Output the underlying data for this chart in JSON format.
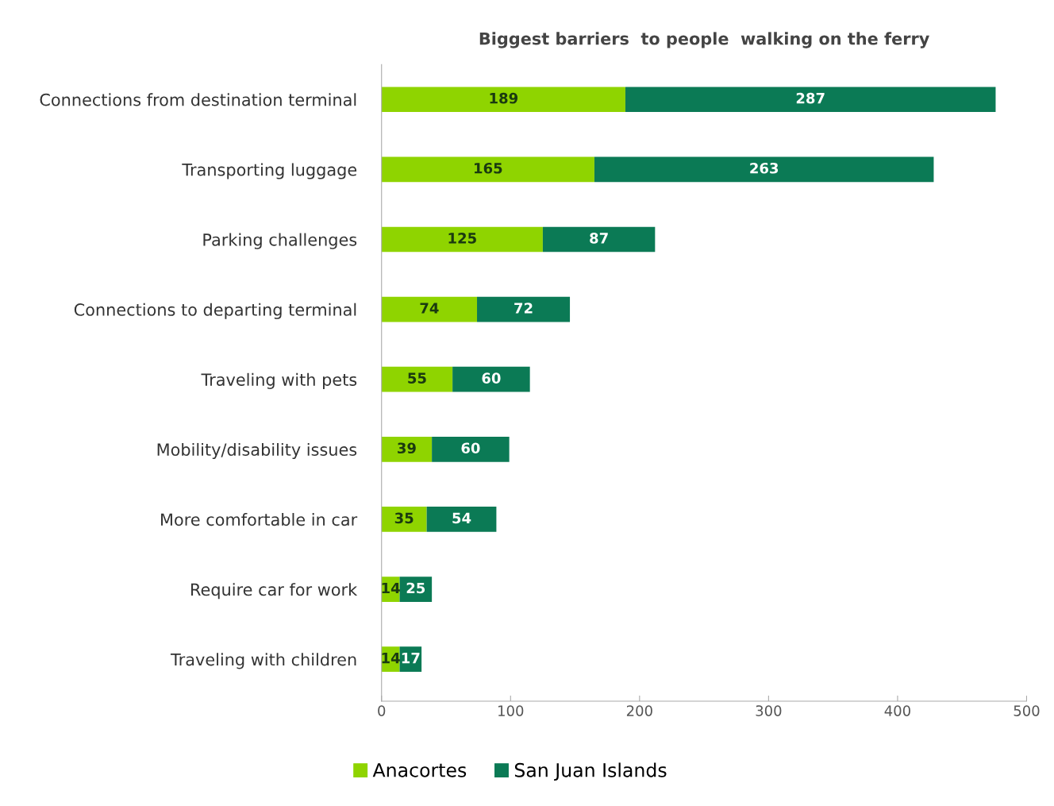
{
  "chart_data": {
    "type": "bar",
    "orientation": "horizontal",
    "stacked": true,
    "title": "Biggest barriers  to people  walking on the ferry",
    "categories": [
      "Connections from destination terminal",
      "Transporting luggage",
      "Parking challenges",
      "Connections to departing terminal",
      "Traveling with pets",
      "Mobility/disability issues",
      "More comfortable in car",
      "Require car for work",
      "Traveling with children"
    ],
    "series": [
      {
        "name": "Anacortes",
        "color": "#8fd400",
        "values": [
          189,
          165,
          125,
          74,
          55,
          39,
          35,
          14,
          14
        ]
      },
      {
        "name": "San Juan Islands",
        "color": "#0b7a55",
        "values": [
          287,
          263,
          87,
          72,
          60,
          60,
          54,
          25,
          17
        ]
      }
    ],
    "xlim": [
      0,
      500
    ],
    "xticks": [
      0,
      100,
      200,
      300,
      400,
      500
    ],
    "grid": false,
    "legend": "bottom",
    "data_labels": true
  }
}
